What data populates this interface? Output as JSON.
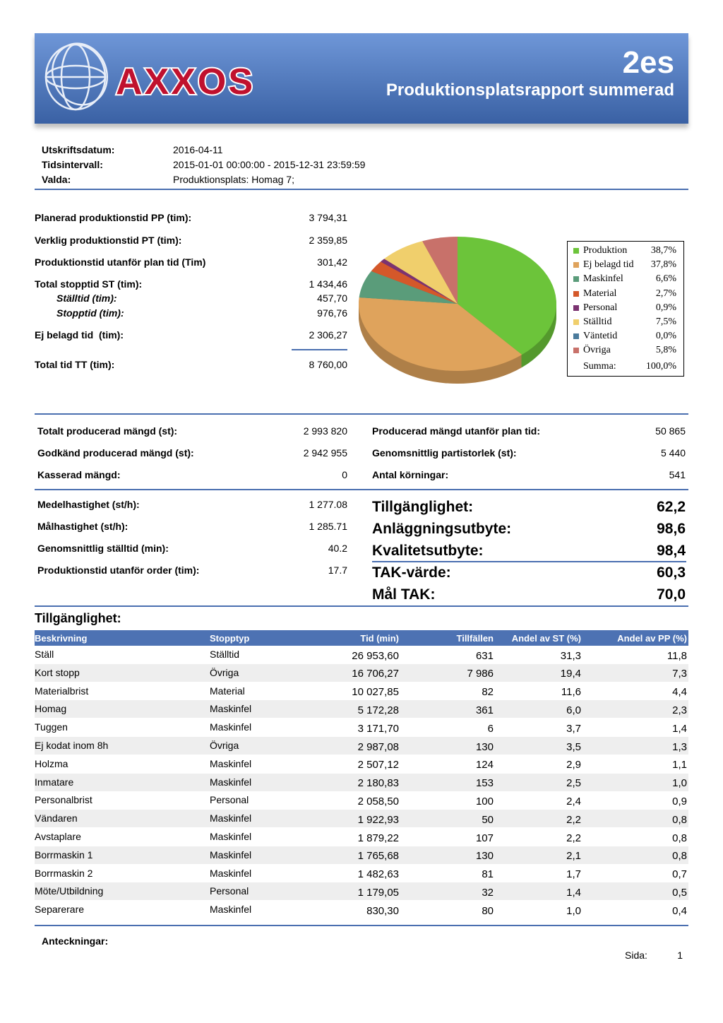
{
  "header": {
    "logo": "AXXOS",
    "code": "2es",
    "title": "Produktionsplatsrapport summerad"
  },
  "meta": [
    {
      "label": "Utskriftsdatum:",
      "value": "2016-04-11"
    },
    {
      "label": "Tidsintervall:",
      "value": "2015-01-01 00:00:00 - 2015-12-31 23:59:59"
    },
    {
      "label": "Valda:",
      "value": "Produktionsplats: Homag 7;"
    }
  ],
  "times": [
    {
      "label": "Planerad produktionstid PP (tim):",
      "value": "3 794,31"
    },
    {
      "label": "Verklig produktionstid PT (tim):",
      "value": "2 359,85"
    },
    {
      "label": "Produktionstid utanför plan tid (Tim)",
      "value": "301,42"
    },
    {
      "label": "Total stopptid ST (tim):",
      "value": "1 434,46"
    },
    {
      "label": "Ställtid (tim):",
      "value": "457,70"
    },
    {
      "label": "Stopptid (tim):",
      "value": "976,76"
    },
    {
      "label": "Ej belagd tid  (tim):",
      "value": "2 306,27"
    },
    {
      "label": "Total tid TT (tim):",
      "value": "8 760,00"
    }
  ],
  "chart_data": {
    "type": "pie",
    "categories": [
      "Produktion",
      "Ej belagd tid",
      "Maskinfel",
      "Material",
      "Personal",
      "Ställtid",
      "Väntetid",
      "Övriga"
    ],
    "values": [
      38.7,
      37.8,
      6.6,
      2.7,
      0.9,
      7.5,
      0.0,
      5.8
    ],
    "value_labels": [
      "38,7%",
      "37,8%",
      "6,6%",
      "2,7%",
      "0,9%",
      "7,5%",
      "0,0%",
      "5,8%"
    ],
    "colors": [
      "#6cc43a",
      "#dfa35c",
      "#5a9c7a",
      "#d4582a",
      "#7b3371",
      "#f0cf6c",
      "#4b7b9c",
      "#c8716a"
    ],
    "total_label": "Summa:",
    "total": "100,0%"
  },
  "quantities_left": [
    {
      "label": "Totalt producerad mängd (st):",
      "value": "2 993 820"
    },
    {
      "label": "Godkänd producerad mängd (st):",
      "value": "2 942 955"
    },
    {
      "label": "Kasserad mängd:",
      "value": "0"
    }
  ],
  "quantities_right": [
    {
      "label": "Producerad mängd utanför plan tid:",
      "value": "50 865"
    },
    {
      "label": "Genomsnittlig partistorlek (st):",
      "value": "5 440"
    },
    {
      "label": "Antal körningar:",
      "value": "541"
    }
  ],
  "speeds": [
    {
      "label": "Medelhastighet (st/h):",
      "value": "1 277.08"
    },
    {
      "label": "Målhastighet (st/h):",
      "value": "1 285.71"
    },
    {
      "label": "Genomsnittlig ställtid (min):",
      "value": "40.2"
    },
    {
      "label": "Produktionstid utanför order (tim):",
      "value": "17.7"
    }
  ],
  "kpis": [
    {
      "label": "Tillgänglighet:",
      "value": "62,2"
    },
    {
      "label": "Anläggningsutbyte:",
      "value": "98,6"
    },
    {
      "label": "Kvalitetsutbyte:",
      "value": "98,4"
    },
    {
      "label": "TAK-värde:",
      "value": "60,3"
    },
    {
      "label": "Mål TAK:",
      "value": "70,0"
    }
  ],
  "table": {
    "title": "Tillgänglighet:",
    "columns": [
      "Beskrivning",
      "Stopptyp",
      "Tid (min)",
      "Tillfällen",
      "Andel av ST (%)",
      "Andel av PP (%)"
    ],
    "rows": [
      [
        "Ställ",
        "Ställtid",
        "26 953,60",
        "631",
        "31,3",
        "11,8"
      ],
      [
        "Kort stopp",
        "Övriga",
        "16 706,27",
        "7 986",
        "19,4",
        "7,3"
      ],
      [
        "Materialbrist",
        "Material",
        "10 027,85",
        "82",
        "11,6",
        "4,4"
      ],
      [
        "Homag",
        "Maskinfel",
        "5 172,28",
        "361",
        "6,0",
        "2,3"
      ],
      [
        "Tuggen",
        "Maskinfel",
        "3 171,70",
        "6",
        "3,7",
        "1,4"
      ],
      [
        "Ej kodat inom 8h",
        "Övriga",
        "2 987,08",
        "130",
        "3,5",
        "1,3"
      ],
      [
        "Holzma",
        "Maskinfel",
        "2 507,12",
        "124",
        "2,9",
        "1,1"
      ],
      [
        "Inmatare",
        "Maskinfel",
        "2 180,83",
        "153",
        "2,5",
        "1,0"
      ],
      [
        "Personalbrist",
        "Personal",
        "2 058,50",
        "100",
        "2,4",
        "0,9"
      ],
      [
        "Vändaren",
        "Maskinfel",
        "1 922,93",
        "50",
        "2,2",
        "0,8"
      ],
      [
        "Avstaplare",
        "Maskinfel",
        "1 879,22",
        "107",
        "2,2",
        "0,8"
      ],
      [
        "Borrmaskin 1",
        "Maskinfel",
        "1 765,68",
        "130",
        "2,1",
        "0,8"
      ],
      [
        "Borrmaskin 2",
        "Maskinfel",
        "1 482,63",
        "81",
        "1,7",
        "0,7"
      ],
      [
        "Möte/Utbildning",
        "Personal",
        "1 179,05",
        "32",
        "1,4",
        "0,5"
      ],
      [
        "Separerare",
        "Maskinfel",
        "830,30",
        "80",
        "1,0",
        "0,4"
      ]
    ]
  },
  "notes_label": "Anteckningar:",
  "page": {
    "label": "Sida:",
    "number": "1"
  }
}
